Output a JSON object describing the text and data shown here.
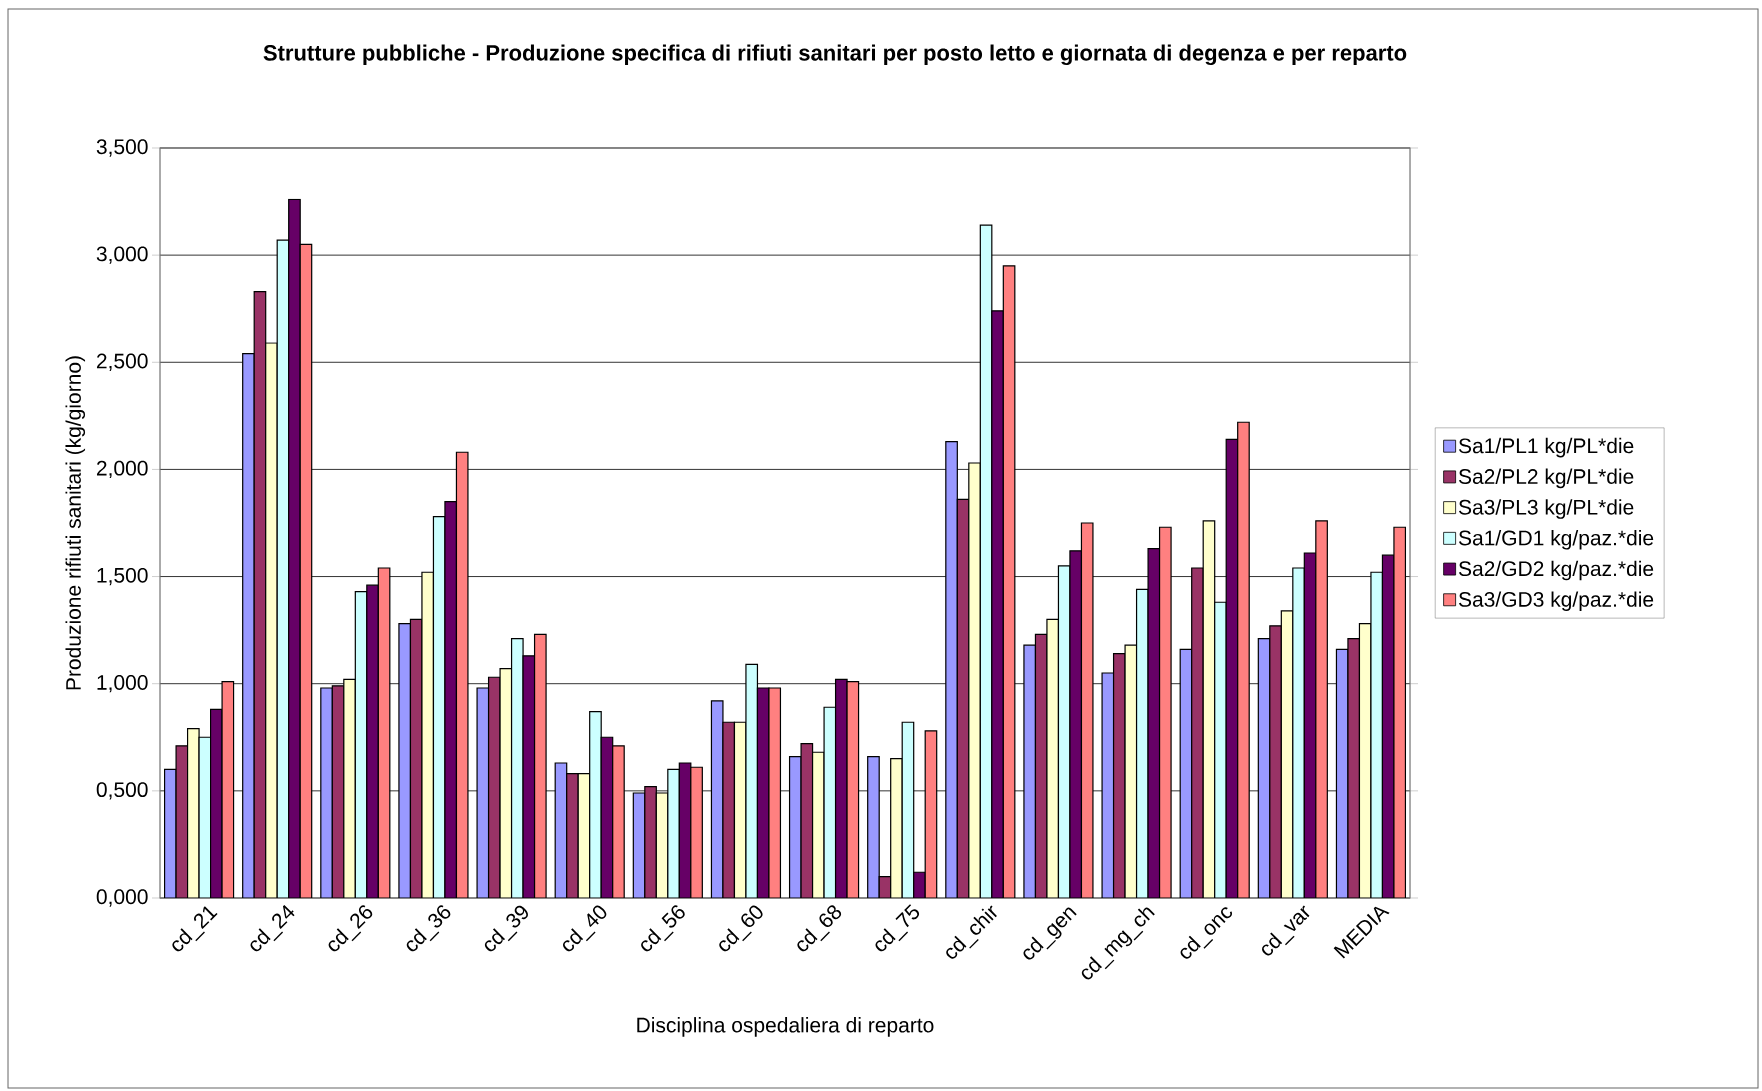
{
  "chart_data": {
    "type": "bar",
    "title": "Strutture pubbliche - Produzione specifica di rifiuti sanitari per posto letto e giornata di degenza e per reparto",
    "xlabel": "Disciplina ospedaliera di reparto",
    "ylabel": "Produzione rifiuti sanitari (kg/giorno)",
    "categories": [
      "cd_21",
      "cd_24",
      "cd_26",
      "cd_36",
      "cd_39",
      "cd_40",
      "cd_56",
      "cd_60",
      "cd_68",
      "cd_75",
      "cd_chir",
      "cd_gen",
      "cd_mg_ch",
      "cd_onc",
      "cd_var",
      "MEDIA"
    ],
    "series": [
      {
        "name": "Sa1/PL1 kg/PL*die",
        "color": "#9999ff",
        "values": [
          0.6,
          2.54,
          0.98,
          1.28,
          0.98,
          0.63,
          0.49,
          0.92,
          0.66,
          0.66,
          2.13,
          1.18,
          1.05,
          1.16,
          1.21,
          1.16
        ]
      },
      {
        "name": "Sa2/PL2 kg/PL*die",
        "color": "#993366",
        "values": [
          0.71,
          2.83,
          0.99,
          1.3,
          1.03,
          0.58,
          0.52,
          0.82,
          0.72,
          0.1,
          1.86,
          1.23,
          1.14,
          1.54,
          1.27,
          1.21
        ]
      },
      {
        "name": "Sa3/PL3 kg/PL*die",
        "color": "#ffffcc",
        "values": [
          0.79,
          2.59,
          1.02,
          1.52,
          1.07,
          0.58,
          0.49,
          0.82,
          0.68,
          0.65,
          2.03,
          1.3,
          1.18,
          1.76,
          1.34,
          1.28
        ]
      },
      {
        "name": "Sa1/GD1 kg/paz.*die",
        "color": "#ccffff",
        "values": [
          0.75,
          3.07,
          1.43,
          1.78,
          1.21,
          0.87,
          0.6,
          1.09,
          0.89,
          0.82,
          3.14,
          1.55,
          1.44,
          1.38,
          1.54,
          1.52
        ]
      },
      {
        "name": "Sa2/GD2 kg/paz.*die",
        "color": "#660066",
        "values": [
          0.88,
          3.26,
          1.46,
          1.85,
          1.13,
          0.75,
          0.63,
          0.98,
          1.02,
          0.12,
          2.74,
          1.62,
          1.63,
          2.14,
          1.61,
          1.6
        ]
      },
      {
        "name": "Sa3/GD3 kg/paz.*die",
        "color": "#ff8080",
        "values": [
          1.01,
          3.05,
          1.54,
          2.08,
          1.23,
          0.71,
          0.61,
          0.98,
          1.01,
          0.78,
          2.95,
          1.75,
          1.73,
          2.22,
          1.76,
          1.73
        ]
      }
    ],
    "ylim": [
      0,
      3.5
    ],
    "yticks": [
      {
        "value": 0,
        "label": "0,000"
      },
      {
        "value": 0.5,
        "label": "0,500"
      },
      {
        "value": 1,
        "label": "1,000"
      },
      {
        "value": 1.5,
        "label": "1,500"
      },
      {
        "value": 2,
        "label": "2,000"
      },
      {
        "value": 2.5,
        "label": "2,500"
      },
      {
        "value": 3,
        "label": "3,000"
      },
      {
        "value": 3.5,
        "label": "3,500"
      }
    ],
    "grid": "y",
    "legend": "right"
  }
}
